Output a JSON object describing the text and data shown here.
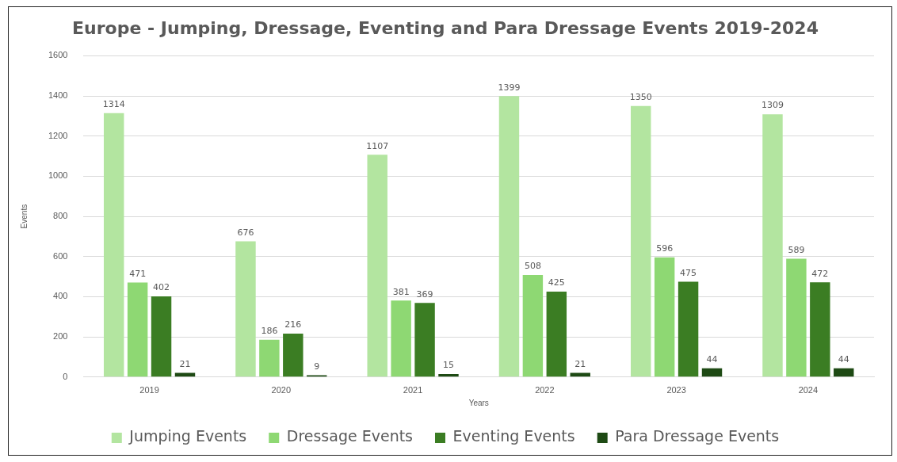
{
  "chart_data": {
    "type": "bar",
    "title": "Europe - Jumping, Dressage, Eventing and Para Dressage Events 2019-2024",
    "xlabel": "Years",
    "ylabel": "Events",
    "categories": [
      "2019",
      "2020",
      "2021",
      "2022",
      "2023",
      "2024"
    ],
    "series": [
      {
        "name": "Jumping Events",
        "color": "#b3e5a0",
        "values": [
          1314,
          676,
          1107,
          1399,
          1350,
          1309
        ]
      },
      {
        "name": "Dressage Events",
        "color": "#8ed873",
        "values": [
          471,
          186,
          381,
          508,
          596,
          589
        ]
      },
      {
        "name": "Eventing Events",
        "color": "#3b7d23",
        "values": [
          402,
          216,
          369,
          425,
          475,
          472
        ]
      },
      {
        "name": "Para Dressage Events",
        "color": "#1e4a14",
        "values": [
          21,
          9,
          15,
          21,
          44,
          44
        ]
      }
    ],
    "ylim": [
      0,
      1600
    ],
    "yticks": [
      0,
      200,
      400,
      600,
      800,
      1000,
      1200,
      1400,
      1600
    ],
    "grid": "y",
    "legend": "bottom",
    "data_labels": true
  }
}
